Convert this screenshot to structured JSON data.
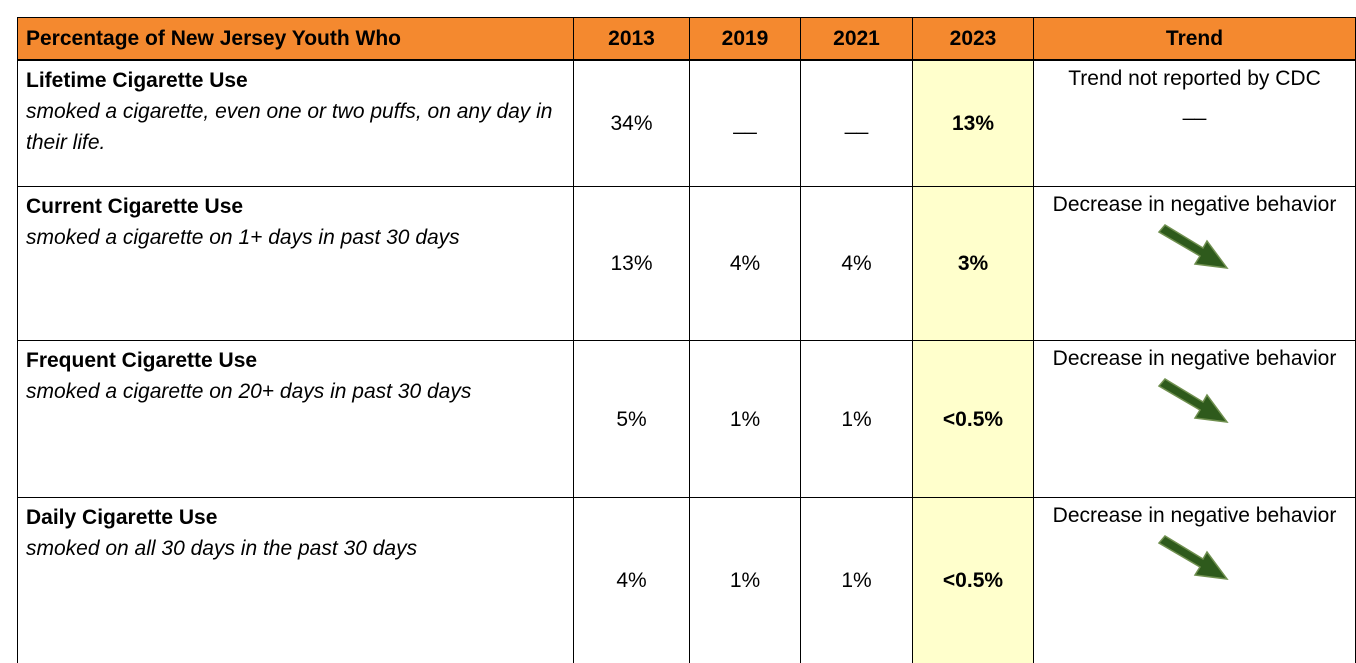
{
  "table": {
    "header": [
      "Percentage of New Jersey Youth Who",
      "2013",
      "2019",
      "2021",
      "2023",
      "Trend"
    ],
    "rows": [
      {
        "title": "Lifetime Cigarette Use",
        "description": "smoked a cigarette, even one or two puffs, on any day in their life.",
        "values": [
          "34%",
          "__",
          "__",
          "13%"
        ],
        "trend": "Trend not reported by CDC",
        "trend_note": "__"
      },
      {
        "title": "Current Cigarette Use",
        "description": "smoked a cigarette on 1+ days in past 30 days",
        "values": [
          "13%",
          "4%",
          "4%",
          "3%"
        ],
        "trend": "Decrease in negative behavior"
      },
      {
        "title": "Frequent Cigarette Use",
        "description": "smoked a cigarette on 20+ days in past 30 days",
        "values": [
          "5%",
          "1%",
          "1%",
          "<0.5%"
        ],
        "trend": "Decrease in negative behavior"
      },
      {
        "title": "Daily Cigarette Use",
        "description": "smoked on all 30 days in the past 30 days",
        "values": [
          "4%",
          "1%",
          "1%",
          "<0.5%"
        ],
        "trend": "Decrease in negative behavior"
      }
    ]
  }
}
